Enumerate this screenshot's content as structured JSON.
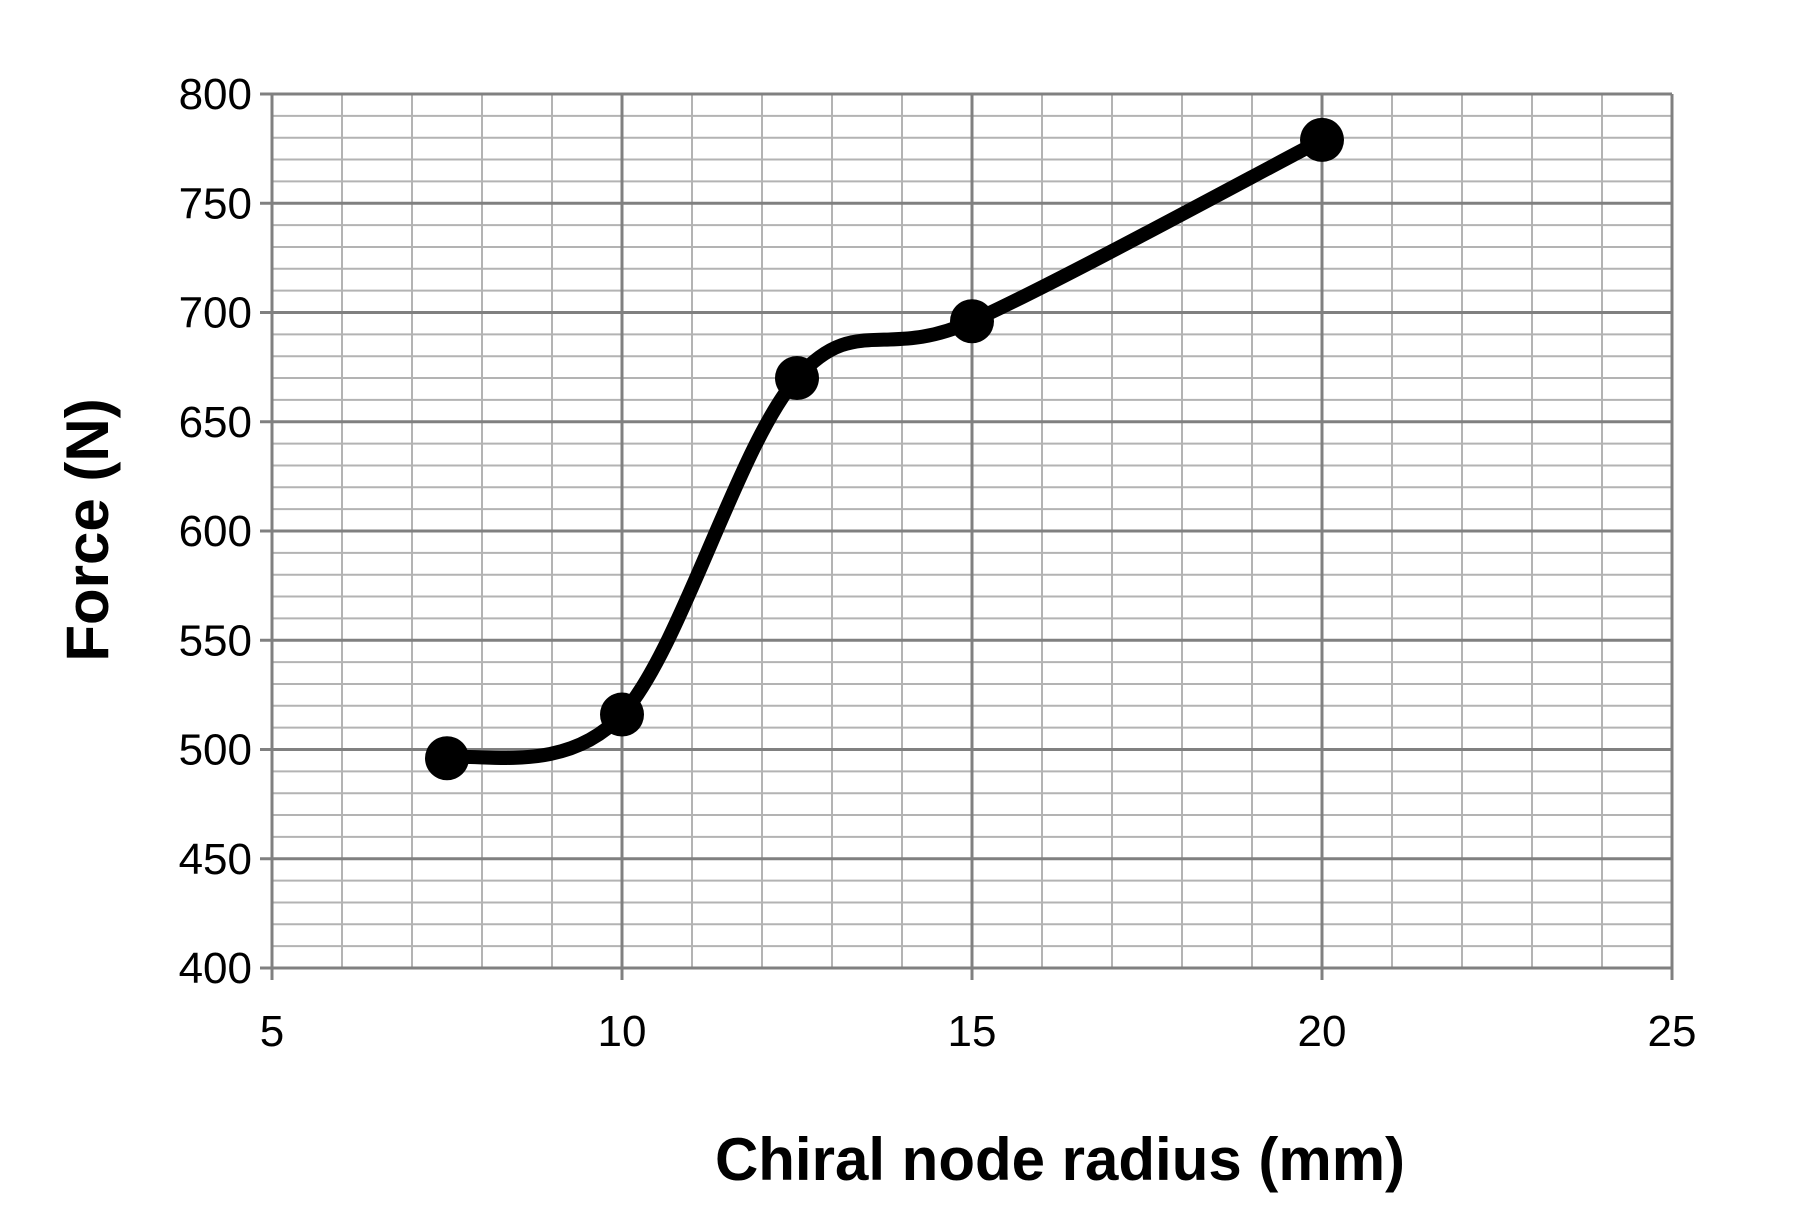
{
  "chart_data": {
    "type": "line",
    "title": "",
    "xlabel": "Chiral node radius (mm)",
    "ylabel": "Force (N)",
    "xlim": [
      5,
      25
    ],
    "ylim": [
      400,
      800
    ],
    "x_ticks": [
      "5",
      "10",
      "15",
      "20",
      "25"
    ],
    "y_ticks": [
      "400",
      "450",
      "500",
      "550",
      "600",
      "650",
      "700",
      "750",
      "800"
    ],
    "grid": true,
    "x_minor_step": 1,
    "y_minor_step": 10,
    "smoothed": true,
    "marker": "circle",
    "line_color": "#000000",
    "series": [
      {
        "x": [
          7.5,
          10,
          12.5,
          15,
          20
        ],
        "values": [
          496,
          516,
          670,
          696,
          779
        ]
      }
    ]
  }
}
